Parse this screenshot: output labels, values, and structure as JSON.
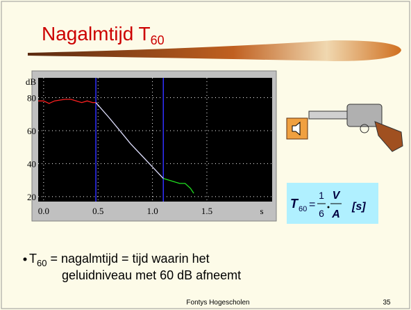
{
  "title": {
    "text": "Nagalmtijd T",
    "subscript": "60"
  },
  "chart_data": {
    "type": "line",
    "y_label": "dB",
    "x_label": "s",
    "xlim": [
      -0.05,
      2.1
    ],
    "ylim": [
      17,
      92
    ],
    "xticks": [
      {
        "value": 0,
        "label": "0.0"
      },
      0.5,
      {
        "value": 1,
        "label": "1.0"
      },
      1.5
    ],
    "yticks": [
      20,
      40,
      60,
      80
    ],
    "grid": true,
    "markers": [
      0.48,
      1.1
    ],
    "marker_color": "#3030ff",
    "series": [
      {
        "color": "#ff2020",
        "x": [
          -0.05,
          0,
          0.05,
          0.1,
          0.15,
          0.2,
          0.25,
          0.3,
          0.35,
          0.4,
          0.45,
          0.48
        ],
        "values": [
          78,
          78,
          76.5,
          78,
          78.5,
          79,
          79,
          78,
          77,
          78,
          77,
          77
        ]
      },
      {
        "color": "#e0e0ff",
        "x": [
          0.48,
          0.6,
          0.7,
          0.8,
          0.9,
          1.0,
          1.1
        ],
        "values": [
          77,
          68,
          60,
          52,
          45,
          38,
          31
        ]
      },
      {
        "color": "#20e020",
        "x": [
          1.1,
          1.15,
          1.2,
          1.25,
          1.3,
          1.35,
          1.38
        ],
        "values": [
          31,
          30,
          29,
          28,
          28,
          25,
          22
        ]
      }
    ]
  },
  "formula": {
    "lhs": "T",
    "lhs_sub": "60",
    "equals": "=",
    "num1": "1",
    "den1": "6",
    "num2": "V",
    "den2": "A",
    "unit": "[s]"
  },
  "bullet": {
    "start": "T",
    "sub": "60",
    "rest": " = nagalmtijd = tijd waarin het",
    "line2": "geluidniveau met 60 dB afneemt"
  },
  "footer": {
    "text": "Fontys Hogescholen",
    "page": "35"
  }
}
